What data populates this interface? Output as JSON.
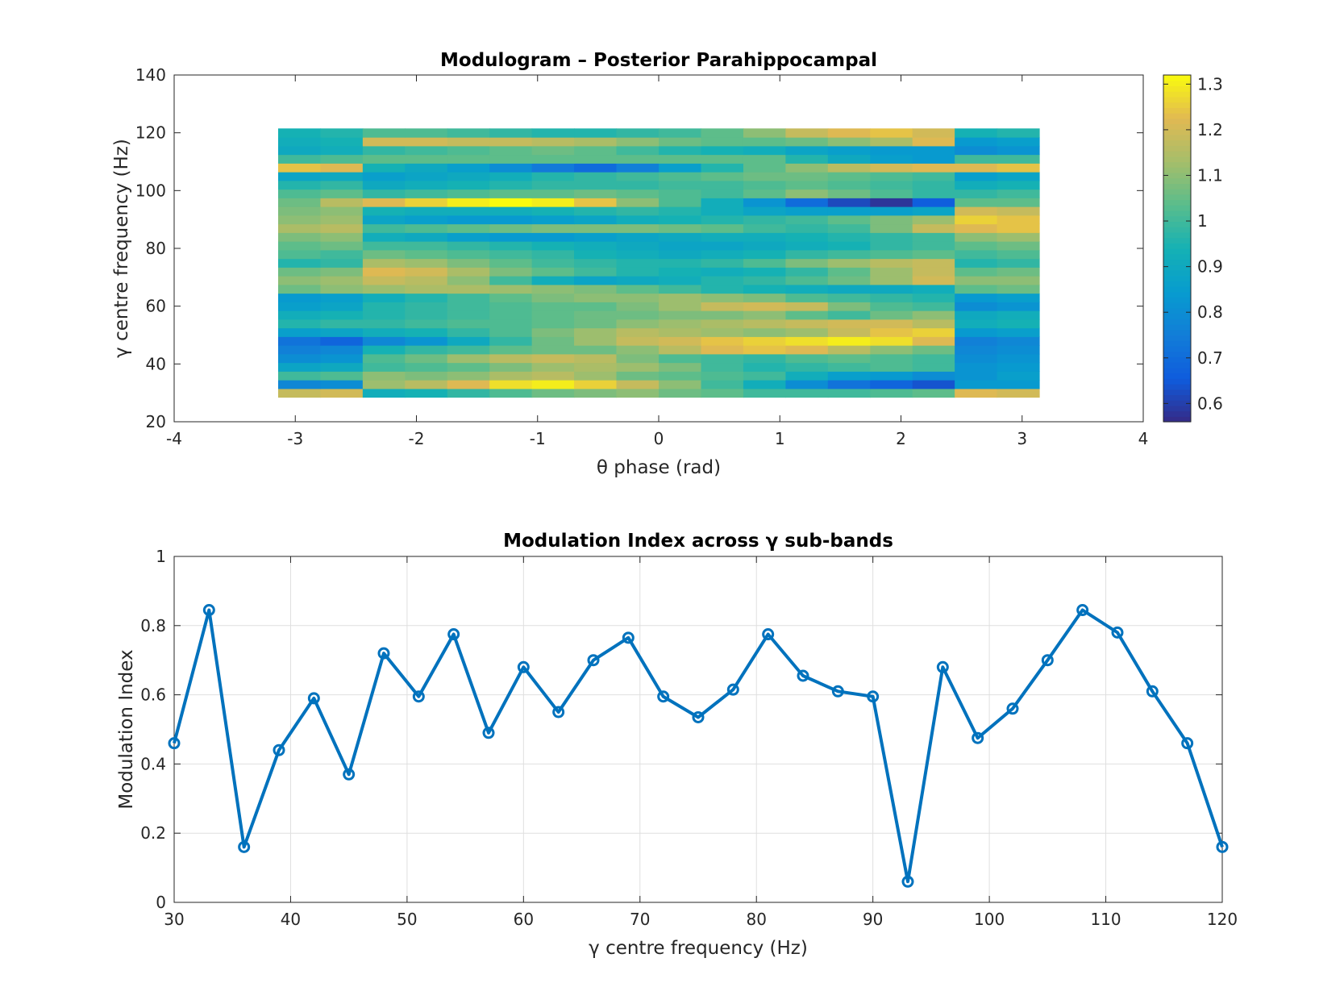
{
  "chart_data": [
    {
      "type": "heatmap",
      "title": "Modulogram – Posterior Parahippocampal",
      "xlabel": "θ phase (rad)",
      "ylabel": "γ centre frequency (Hz)",
      "xlim": [
        -4,
        4
      ],
      "ylim": [
        20,
        140
      ],
      "xticks": [
        -4,
        -3,
        -2,
        -1,
        0,
        1,
        2,
        3,
        4
      ],
      "yticks": [
        20,
        40,
        60,
        80,
        100,
        120,
        140
      ],
      "colormap": "parula",
      "clim": [
        0.56,
        1.32
      ],
      "colorbar_ticks": [
        0.6,
        0.7,
        0.8,
        0.9,
        1,
        1.1,
        1.2,
        1.3
      ],
      "x_centers": [
        -2.967,
        -2.618,
        -2.269,
        -1.92,
        -1.571,
        -1.222,
        -0.873,
        -0.524,
        -0.175,
        0.175,
        0.524,
        0.873,
        1.222,
        1.571,
        1.92,
        2.269,
        2.618,
        2.967
      ],
      "y_centers": [
        30,
        33,
        36,
        39,
        42,
        45,
        48,
        51,
        54,
        57,
        60,
        63,
        66,
        69,
        72,
        75,
        78,
        81,
        84,
        87,
        90,
        93,
        96,
        99,
        102,
        105,
        108,
        111,
        114,
        117,
        120
      ],
      "values": [
        [
          1.18,
          1.2,
          0.92,
          0.94,
          0.98,
          1.02,
          1.06,
          1.08,
          1.1,
          1.06,
          1.04,
          1.0,
          1.0,
          1.0,
          1.02,
          1.04,
          1.22,
          1.2
        ],
        [
          0.78,
          0.8,
          1.12,
          1.16,
          1.22,
          1.28,
          1.3,
          1.26,
          1.18,
          1.1,
          1.0,
          0.92,
          0.8,
          0.72,
          0.68,
          0.64,
          0.84,
          0.84
        ],
        [
          1.0,
          1.02,
          1.1,
          1.08,
          1.1,
          1.14,
          1.16,
          1.12,
          1.06,
          1.04,
          1.02,
          1.0,
          0.92,
          0.86,
          0.84,
          0.8,
          0.82,
          0.86
        ],
        [
          0.88,
          0.9,
          1.0,
          1.02,
          1.04,
          1.08,
          1.12,
          1.14,
          1.12,
          1.08,
          1.0,
          0.96,
          0.98,
          1.0,
          1.02,
          1.0,
          0.82,
          0.84
        ],
        [
          0.8,
          0.82,
          1.02,
          1.06,
          1.12,
          1.16,
          1.18,
          1.16,
          1.08,
          1.02,
          1.0,
          0.98,
          1.02,
          1.04,
          1.02,
          1.0,
          0.8,
          0.82
        ],
        [
          0.76,
          0.78,
          0.94,
          0.98,
          1.0,
          1.04,
          1.06,
          1.06,
          1.1,
          1.16,
          1.22,
          1.24,
          1.22,
          1.16,
          1.1,
          1.06,
          0.78,
          0.8
        ],
        [
          0.72,
          0.68,
          0.78,
          0.82,
          0.9,
          0.98,
          1.06,
          1.12,
          1.18,
          1.2,
          1.24,
          1.26,
          1.28,
          1.3,
          1.28,
          1.22,
          0.76,
          0.78
        ],
        [
          0.86,
          0.88,
          0.92,
          0.94,
          0.98,
          1.02,
          1.08,
          1.12,
          1.16,
          1.14,
          1.12,
          1.1,
          1.12,
          1.18,
          1.24,
          1.26,
          0.84,
          0.86
        ],
        [
          0.96,
          0.98,
          0.98,
          1.0,
          1.02,
          1.02,
          1.04,
          1.06,
          1.1,
          1.12,
          1.14,
          1.16,
          1.18,
          1.2,
          1.2,
          1.16,
          0.92,
          0.94
        ],
        [
          0.92,
          0.94,
          0.96,
          0.98,
          1.0,
          1.02,
          1.04,
          1.06,
          1.06,
          1.08,
          1.08,
          1.1,
          1.04,
          1.0,
          1.06,
          1.1,
          0.9,
          0.92
        ],
        [
          0.86,
          0.88,
          0.96,
          0.98,
          1.0,
          1.02,
          1.04,
          1.04,
          1.08,
          1.12,
          1.18,
          1.2,
          1.18,
          1.08,
          1.02,
          1.0,
          0.8,
          0.82
        ],
        [
          0.84,
          0.86,
          0.92,
          0.96,
          1.0,
          1.04,
          1.08,
          1.1,
          1.1,
          1.12,
          1.1,
          1.08,
          1.02,
          1.0,
          0.98,
          0.96,
          0.84,
          0.86
        ],
        [
          1.06,
          1.1,
          1.12,
          1.14,
          1.14,
          1.12,
          1.1,
          1.08,
          1.04,
          1.0,
          0.96,
          0.94,
          0.92,
          0.9,
          0.9,
          0.92,
          1.04,
          1.06
        ],
        [
          1.1,
          1.12,
          1.18,
          1.16,
          1.1,
          1.0,
          0.92,
          0.88,
          0.9,
          0.92,
          0.96,
          0.98,
          1.02,
          1.06,
          1.12,
          1.2,
          1.1,
          1.1
        ],
        [
          1.06,
          1.08,
          1.22,
          1.2,
          1.14,
          1.08,
          1.04,
          1.0,
          0.96,
          0.94,
          0.92,
          0.94,
          0.98,
          1.04,
          1.12,
          1.18,
          1.04,
          1.06
        ],
        [
          0.96,
          0.98,
          1.14,
          1.12,
          1.08,
          1.04,
          1.0,
          0.98,
          0.96,
          0.96,
          0.98,
          1.02,
          1.08,
          1.12,
          1.16,
          1.18,
          0.96,
          0.98
        ],
        [
          1.02,
          1.0,
          1.06,
          1.04,
          1.02,
          1.0,
          0.98,
          0.94,
          0.92,
          0.9,
          0.92,
          0.94,
          0.98,
          1.0,
          1.02,
          1.04,
          1.0,
          1.02
        ],
        [
          1.04,
          1.06,
          1.0,
          1.0,
          0.98,
          0.96,
          0.94,
          0.92,
          0.9,
          0.88,
          0.88,
          0.9,
          0.92,
          0.94,
          0.98,
          1.0,
          1.04,
          1.06
        ],
        [
          1.08,
          1.1,
          0.92,
          0.9,
          0.86,
          0.84,
          0.84,
          0.86,
          0.88,
          0.9,
          0.92,
          0.92,
          0.94,
          0.96,
          0.98,
          1.0,
          1.1,
          1.12
        ],
        [
          1.14,
          1.16,
          1.0,
          1.02,
          1.04,
          1.06,
          1.08,
          1.08,
          1.08,
          1.06,
          1.04,
          1.0,
          0.98,
          1.0,
          1.08,
          1.18,
          1.22,
          1.24
        ],
        [
          1.1,
          1.12,
          0.88,
          0.86,
          0.84,
          0.84,
          0.86,
          0.88,
          0.92,
          0.94,
          0.96,
          0.98,
          1.0,
          1.04,
          1.08,
          1.12,
          1.26,
          1.24
        ],
        [
          1.08,
          1.1,
          0.94,
          0.92,
          0.92,
          0.92,
          0.94,
          0.96,
          0.98,
          0.96,
          0.92,
          0.88,
          0.86,
          0.86,
          0.86,
          0.88,
          1.2,
          1.18
        ],
        [
          1.06,
          1.16,
          1.22,
          1.26,
          1.3,
          1.32,
          1.3,
          1.24,
          1.1,
          1.02,
          0.92,
          0.82,
          0.7,
          0.62,
          0.58,
          0.66,
          1.04,
          1.04
        ],
        [
          1.02,
          1.04,
          0.98,
          1.0,
          1.02,
          1.04,
          1.04,
          1.06,
          1.04,
          1.02,
          1.0,
          1.04,
          1.1,
          1.06,
          1.02,
          0.98,
          0.98,
          1.0
        ],
        [
          0.96,
          0.98,
          0.9,
          0.92,
          0.94,
          0.96,
          0.98,
          0.98,
          0.98,
          1.0,
          1.0,
          1.02,
          1.04,
          1.02,
          1.0,
          0.98,
          0.92,
          0.94
        ],
        [
          0.88,
          0.9,
          0.86,
          0.88,
          0.9,
          0.92,
          0.96,
          0.98,
          1.0,
          1.02,
          1.04,
          1.06,
          1.06,
          1.04,
          1.02,
          1.0,
          0.86,
          0.88
        ],
        [
          1.24,
          1.22,
          0.94,
          0.9,
          0.86,
          0.8,
          0.74,
          0.7,
          0.76,
          0.86,
          0.96,
          1.04,
          1.1,
          1.16,
          1.2,
          1.22,
          1.22,
          1.24
        ],
        [
          1.0,
          1.02,
          1.04,
          1.04,
          1.04,
          1.04,
          1.04,
          1.04,
          1.04,
          1.04,
          1.04,
          1.04,
          0.96,
          0.9,
          0.86,
          0.84,
          1.0,
          1.0
        ],
        [
          0.9,
          0.92,
          0.98,
          1.0,
          1.02,
          1.04,
          1.06,
          1.04,
          1.0,
          0.96,
          0.94,
          0.92,
          0.88,
          0.86,
          0.84,
          0.84,
          0.8,
          0.82
        ],
        [
          0.92,
          0.94,
          1.2,
          1.2,
          1.18,
          1.18,
          1.16,
          1.14,
          1.1,
          1.06,
          1.04,
          1.04,
          1.06,
          1.1,
          1.14,
          1.22,
          0.84,
          0.86
        ],
        [
          0.94,
          0.96,
          1.02,
          1.02,
          1.0,
          0.98,
          0.96,
          0.96,
          0.98,
          1.0,
          1.04,
          1.1,
          1.18,
          1.22,
          1.24,
          1.2,
          0.94,
          0.96
        ]
      ]
    },
    {
      "type": "line",
      "title": "Modulation Index across γ sub-bands",
      "xlabel": "γ centre frequency (Hz)",
      "ylabel": "Modulation Index",
      "xlim": [
        30,
        120
      ],
      "ylim": [
        0,
        1
      ],
      "xticks": [
        30,
        40,
        50,
        60,
        70,
        80,
        90,
        100,
        110,
        120
      ],
      "yticks": [
        0,
        0.2,
        0.4,
        0.6,
        0.8,
        1
      ],
      "grid": true,
      "marker": "circle",
      "color": "#0072BD",
      "x": [
        30,
        33,
        36,
        39,
        42,
        45,
        48,
        51,
        54,
        57,
        60,
        63,
        66,
        69,
        72,
        75,
        78,
        81,
        84,
        87,
        90,
        93,
        96,
        99,
        102,
        105,
        108,
        111,
        114,
        117,
        120
      ],
      "y": [
        0.46,
        0.845,
        0.16,
        0.44,
        0.59,
        0.37,
        0.72,
        0.595,
        0.775,
        0.49,
        0.68,
        0.55,
        0.7,
        0.765,
        0.595,
        0.535,
        0.615,
        0.775,
        0.655,
        0.61,
        0.595,
        0.06,
        0.68,
        0.475,
        0.56,
        0.7,
        0.845,
        0.78,
        0.61,
        0.46,
        0.16
      ]
    }
  ]
}
